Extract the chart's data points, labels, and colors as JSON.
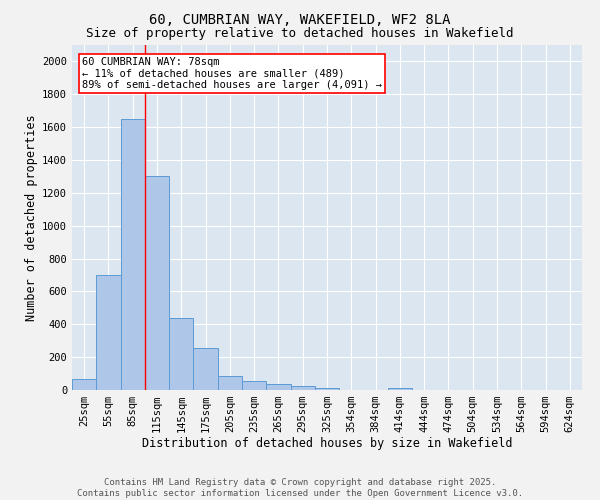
{
  "title_line1": "60, CUMBRIAN WAY, WAKEFIELD, WF2 8LA",
  "title_line2": "Size of property relative to detached houses in Wakefield",
  "xlabel": "Distribution of detached houses by size in Wakefield",
  "ylabel": "Number of detached properties",
  "bar_color": "#aec6e8",
  "bar_edge_color": "#5b9bd5",
  "background_color": "#dce6f1",
  "grid_color": "#ffffff",
  "fig_background": "#f2f2f2",
  "categories": [
    "25sqm",
    "55sqm",
    "85sqm",
    "115sqm",
    "145sqm",
    "175sqm",
    "205sqm",
    "235sqm",
    "265sqm",
    "295sqm",
    "325sqm",
    "354sqm",
    "384sqm",
    "414sqm",
    "444sqm",
    "474sqm",
    "504sqm",
    "534sqm",
    "564sqm",
    "594sqm",
    "624sqm"
  ],
  "values": [
    65,
    700,
    1650,
    1305,
    440,
    255,
    88,
    55,
    38,
    22,
    12,
    0,
    0,
    12,
    0,
    0,
    0,
    0,
    0,
    0,
    0
  ],
  "ylim": [
    0,
    2100
  ],
  "yticks": [
    0,
    200,
    400,
    600,
    800,
    1000,
    1200,
    1400,
    1600,
    1800,
    2000
  ],
  "red_line_index": 2,
  "annotation_text_line1": "60 CUMBRIAN WAY: 78sqm",
  "annotation_text_line2": "← 11% of detached houses are smaller (489)",
  "annotation_text_line3": "89% of semi-detached houses are larger (4,091) →",
  "footer_line1": "Contains HM Land Registry data © Crown copyright and database right 2025.",
  "footer_line2": "Contains public sector information licensed under the Open Government Licence v3.0.",
  "title_fontsize": 10,
  "subtitle_fontsize": 9,
  "axis_label_fontsize": 8.5,
  "tick_fontsize": 7.5,
  "annotation_fontsize": 7.5,
  "footer_fontsize": 6.5
}
